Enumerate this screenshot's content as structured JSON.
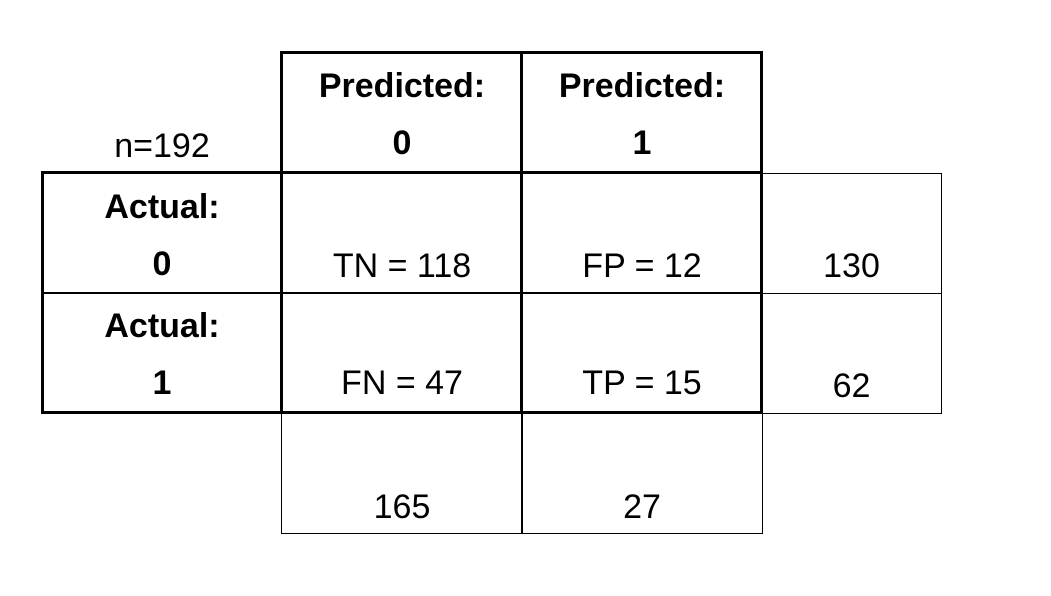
{
  "matrix": {
    "n_label": "n=192",
    "col_headers": [
      {
        "line1": "Predicted:",
        "line2": "0"
      },
      {
        "line1": "Predicted:",
        "line2": "1"
      }
    ],
    "row_headers": [
      {
        "line1": "Actual:",
        "line2": "0"
      },
      {
        "line1": "Actual:",
        "line2": "1"
      }
    ],
    "cells": {
      "tn": "TN = 118",
      "fp": "FP = 12",
      "fn": "FN = 47",
      "tp": "TP = 15"
    },
    "row_totals": [
      "130",
      "62"
    ],
    "col_totals": [
      "165",
      "27"
    ]
  }
}
